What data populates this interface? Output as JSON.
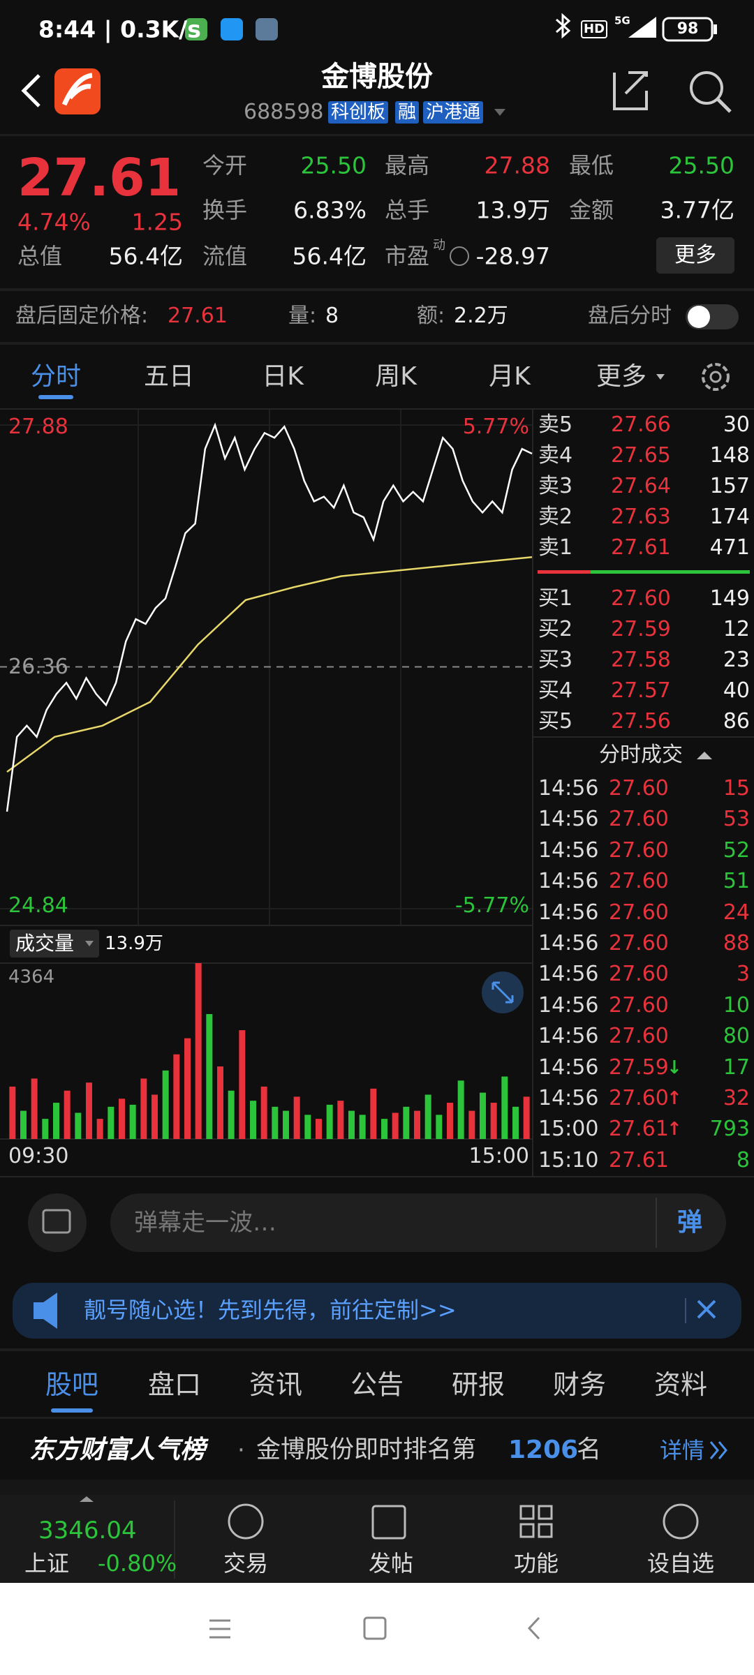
{
  "status_bar": {
    "time": "8:44 | 0.3K/s",
    "hd": "HD",
    "network": "5G",
    "battery": "98"
  },
  "header": {
    "title": "金博股份",
    "code": "688598",
    "tags": [
      "科创板",
      "融",
      "沪港通"
    ]
  },
  "quote": {
    "price": "27.61",
    "change_pct": "4.74%",
    "change": "1.25",
    "fields": [
      {
        "label": "今开",
        "value": "25.50",
        "color": "#2bc43a"
      },
      {
        "label": "最高",
        "value": "27.88",
        "color": "#e8323c"
      },
      {
        "label": "最低",
        "value": "25.50",
        "color": "#2bc43a"
      },
      {
        "label": "换手",
        "value": "6.83%"
      },
      {
        "label": "总手",
        "value": "13.9万"
      },
      {
        "label": "金额",
        "value": "3.77亿"
      },
      {
        "label": "总值",
        "value": "56.4亿"
      },
      {
        "label": "流值",
        "value": "56.4亿"
      },
      {
        "label": "市盈",
        "superscript": "动",
        "value": "-28.97"
      }
    ],
    "more": "更多"
  },
  "after_hours": {
    "price_label": "盘后固定价格:",
    "price": "27.61",
    "volume_label": "量:",
    "volume": "8",
    "amount_label": "额:",
    "amount": "2.2万",
    "timeshare_label": "盘后分时"
  },
  "tabs": {
    "items": [
      "分时",
      "五日",
      "日K",
      "周K",
      "月K",
      "更多"
    ],
    "active": 0
  },
  "intraday": {
    "ylim": [
      24.84,
      27.88
    ],
    "yticks": [
      27.88,
      26.36,
      24.84
    ],
    "pct_labels": [
      "5.77%",
      "-5.77%"
    ],
    "price": [
      25.45,
      25.92,
      25.99,
      25.92,
      26.09,
      26.19,
      26.26,
      26.16,
      26.29,
      26.19,
      26.12,
      26.26,
      26.52,
      26.66,
      26.63,
      26.73,
      26.79,
      26.99,
      27.2,
      27.26,
      27.73,
      27.88,
      27.67,
      27.8,
      27.6,
      27.73,
      27.83,
      27.8,
      27.87,
      27.73,
      27.53,
      27.4,
      27.43,
      27.36,
      27.5,
      27.33,
      27.3,
      27.16,
      27.4,
      27.5,
      27.4,
      27.46,
      27.4,
      27.6,
      27.8,
      27.73,
      27.53,
      27.4,
      27.33,
      27.4,
      27.33,
      27.6,
      27.73,
      27.7
    ],
    "average": [
      25.7,
      25.92,
      25.99,
      26.14,
      26.5,
      26.78,
      26.86,
      26.93,
      26.96,
      26.99,
      27.02,
      27.05
    ],
    "volume_label": "成交量",
    "volume_total": "13.9万",
    "vylim": [
      0,
      4364
    ],
    "vyticks": [
      4364
    ],
    "volume": [
      1300,
      700,
      1500,
      500,
      900,
      1200,
      650,
      1400,
      500,
      800,
      1000,
      850,
      1500,
      1100,
      1700,
      2100,
      2500,
      4364,
      3100,
      1800,
      1200,
      2700,
      950,
      1300,
      800,
      700,
      1050,
      600,
      500,
      850,
      950,
      700,
      600,
      1250,
      500,
      650,
      800,
      700,
      1100,
      600,
      900,
      1450,
      700,
      1150,
      900,
      1550,
      800,
      1050
    ],
    "volume_colors": [
      "#e8323c",
      "#2bc43a",
      "#e8323c",
      "#2bc43a",
      "#2bc43a",
      "#e8323c",
      "#2bc43a",
      "#e8323c",
      "#e8323c",
      "#2bc43a",
      "#e8323c",
      "#2bc43a",
      "#e8323c",
      "#e8323c",
      "#2bc43a",
      "#e8323c",
      "#e8323c",
      "#e8323c",
      "#2bc43a",
      "#e8323c",
      "#2bc43a",
      "#e8323c",
      "#2bc43a",
      "#e8323c",
      "#2bc43a",
      "#2bc43a",
      "#e8323c",
      "#2bc43a",
      "#e8323c",
      "#2bc43a",
      "#e8323c",
      "#2bc43a",
      "#2bc43a",
      "#e8323c",
      "#2bc43a",
      "#e8323c",
      "#2bc43a",
      "#e8323c",
      "#2bc43a",
      "#2bc43a",
      "#e8323c",
      "#2bc43a",
      "#e8323c",
      "#2bc43a",
      "#e8323c",
      "#2bc43a",
      "#2bc43a",
      "#e8323c"
    ],
    "time_start": "09:30",
    "time_end": "15:00"
  },
  "orderbook": {
    "rows": [
      {
        "label": "卖5",
        "price": "27.66",
        "volume": "30"
      },
      {
        "label": "卖4",
        "price": "27.65",
        "volume": "148"
      },
      {
        "label": "卖3",
        "price": "27.64",
        "volume": "157"
      },
      {
        "label": "卖2",
        "price": "27.63",
        "volume": "174"
      },
      {
        "label": "卖1",
        "price": "27.61",
        "volume": "471"
      },
      {
        "label": "买1",
        "price": "27.60",
        "volume": "149"
      },
      {
        "label": "买2",
        "price": "27.59",
        "volume": "12"
      },
      {
        "label": "买3",
        "price": "27.58",
        "volume": "23"
      },
      {
        "label": "买4",
        "price": "27.57",
        "volume": "40"
      },
      {
        "label": "买5",
        "price": "27.56",
        "volume": "86"
      }
    ]
  },
  "trades": {
    "title": "分时成交",
    "rows": [
      {
        "time": "14:56",
        "price": "27.60",
        "volume": "15",
        "color": "#e8323c"
      },
      {
        "time": "14:56",
        "price": "27.60",
        "volume": "53",
        "color": "#e8323c"
      },
      {
        "time": "14:56",
        "price": "27.60",
        "volume": "52",
        "color": "#2bc43a"
      },
      {
        "time": "14:56",
        "price": "27.60",
        "volume": "51",
        "color": "#2bc43a"
      },
      {
        "time": "14:56",
        "price": "27.60",
        "volume": "24",
        "color": "#e8323c"
      },
      {
        "time": "14:56",
        "price": "27.60",
        "volume": "88",
        "color": "#e8323c"
      },
      {
        "time": "14:56",
        "price": "27.60",
        "volume": "3",
        "color": "#e8323c"
      },
      {
        "time": "14:56",
        "price": "27.60",
        "volume": "10",
        "color": "#2bc43a"
      },
      {
        "time": "14:56",
        "price": "27.60",
        "volume": "80",
        "color": "#2bc43a"
      },
      {
        "time": "14:56",
        "price": "27.59",
        "flag": "↓",
        "flag_color": "#2bc43a",
        "volume": "17",
        "color": "#2bc43a"
      },
      {
        "time": "14:56",
        "price": "27.60",
        "flag": "↑",
        "flag_color": "#e8323c",
        "volume": "32",
        "color": "#e8323c"
      },
      {
        "time": "15:00",
        "price": "27.61",
        "flag": "↑",
        "flag_color": "#e8323c",
        "volume": "793",
        "color": "#2bc43a"
      },
      {
        "time": "15:10",
        "price": "27.61",
        "volume": "8",
        "color": "#2bc43a"
      }
    ]
  },
  "comment": {
    "placeholder": "弹幕走一波…",
    "button": "弹"
  },
  "banner": {
    "text": "靓号随心选！先到先得，前往定制>>"
  },
  "sections": {
    "items": [
      "股吧",
      "盘口",
      "资讯",
      "公告",
      "研报",
      "财务",
      "资料"
    ],
    "active": 0
  },
  "ranking": {
    "brand": "东方财富人气榜",
    "separator": "·",
    "text": "金博股份即时排名第",
    "rank": "1206",
    "suffix": "名",
    "detail": "详情"
  },
  "bottom_nav": {
    "index_value": "3346.04",
    "index_name": "上证",
    "index_change": "-0.80%",
    "items": [
      "交易",
      "发帖",
      "功能",
      "设自选"
    ]
  }
}
